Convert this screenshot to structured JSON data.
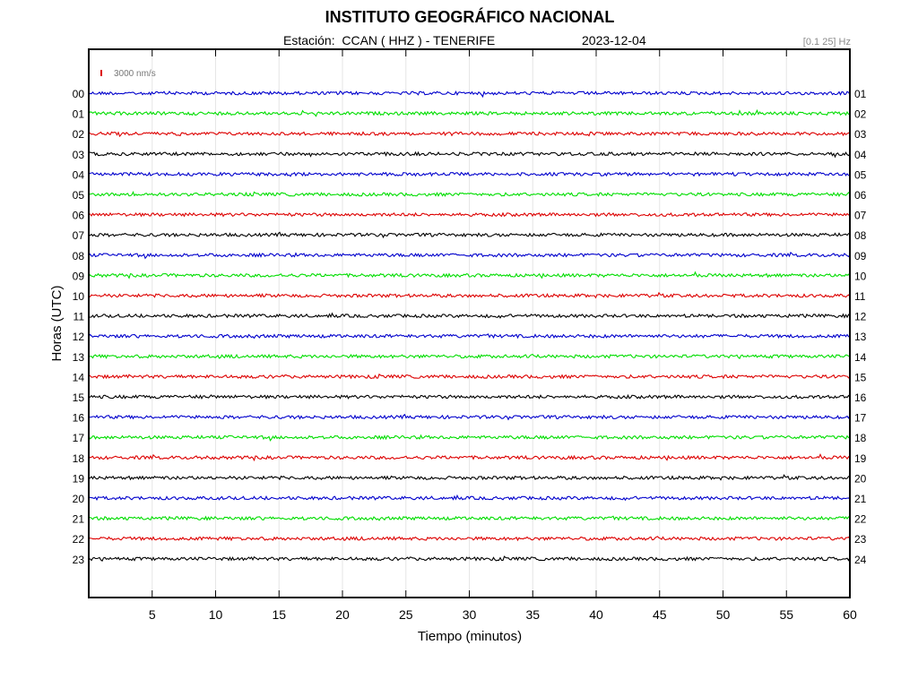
{
  "header": {
    "title": "INSTITUTO GEOGRÁFICO NACIONAL",
    "station_line": "Estación:  CCAN ( HHZ ) - TENERIFE",
    "date": "2023-12-04",
    "filter": "[0.1 25] Hz"
  },
  "chart_data": {
    "type": "line",
    "title": "INSTITUTO GEOGRÁFICO NACIONAL",
    "xlabel": "Tiempo (minutos)",
    "ylabel": "Horas (UTC)",
    "xlim": [
      0,
      60
    ],
    "x_ticks": [
      5,
      10,
      15,
      20,
      25,
      30,
      35,
      40,
      45,
      50,
      55,
      60
    ],
    "hours_left": [
      "00",
      "01",
      "02",
      "03",
      "04",
      "05",
      "06",
      "07",
      "08",
      "09",
      "10",
      "11",
      "12",
      "13",
      "14",
      "15",
      "16",
      "17",
      "18",
      "19",
      "20",
      "21",
      "22",
      "23"
    ],
    "hours_right": [
      "01",
      "02",
      "03",
      "04",
      "05",
      "06",
      "07",
      "08",
      "09",
      "10",
      "11",
      "12",
      "13",
      "14",
      "15",
      "16",
      "17",
      "18",
      "19",
      "20",
      "21",
      "22",
      "23",
      "24"
    ],
    "trace_colors": [
      "#0000cc",
      "#00dd00",
      "#dd0000",
      "#000000"
    ],
    "scale_label": "3000 nm/s",
    "scale_color": "#dd0000",
    "grid": true
  }
}
